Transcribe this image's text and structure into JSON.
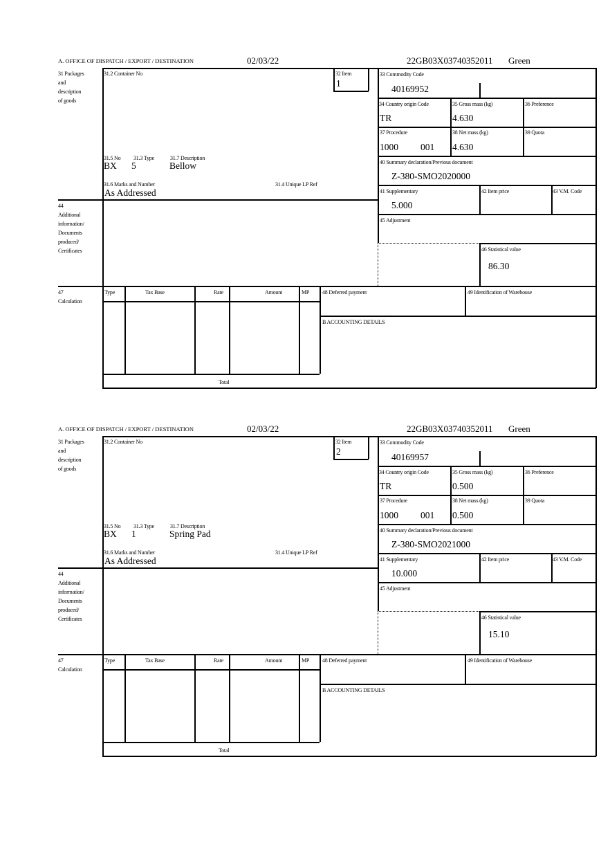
{
  "labels": {
    "office": "A.  OFFICE OF DISPATCH / EXPORT / DESTINATION",
    "box31": [
      "31 Packages",
      "and",
      "description",
      "of goods"
    ],
    "container_no": "31.2 Container No",
    "item": "32 Item",
    "commodity_code": "33 Commodity Code",
    "country_origin": "34 Country origin Code",
    "gross_mass": "35 Gross mass (kg)",
    "preference": "36 Preference",
    "procedure": "37 Procedure",
    "net_mass": "38 Net mass (kg)",
    "quota": "39 Quota",
    "summary_declaration": "40 Summary declaration/Previous document",
    "supplementary": "41 Supplementary",
    "item_price": "42 Item price",
    "vm_code": "43 V.M. Code",
    "adjustment": "45 Adjustment",
    "statistical_value": "46 Statistical value",
    "no": "31.5 No",
    "type": "31.3 Type",
    "description": "31.7 Description",
    "marks": "31.6 Marks and Number",
    "unique_lp_ref": "31.4 Unique LP Ref",
    "box44": [
      "44",
      "Additional",
      "information/",
      "Documents",
      "produced/",
      "Certificates"
    ],
    "box47": [
      "47",
      "Calculation"
    ],
    "calc_headers": [
      "Type",
      "Tax Base",
      "Rate",
      "Amount",
      "MP"
    ],
    "total": "Total",
    "deferred_payment": "48 Deferred payment",
    "warehouse": "49 Identification of Warehouse",
    "accounting": "B ACCOUNTING DETAILS"
  },
  "forms": [
    {
      "date": "02/03/22",
      "reference": "22GB03X03740352011",
      "route": "Green",
      "item": "1",
      "commodity_code": "40169952",
      "country_origin": "TR",
      "gross_mass": "4.630",
      "procedure": "1000",
      "procedure_extra": "001",
      "net_mass": "4.630",
      "summary_declaration": "Z-380-SMO2020000",
      "supplementary": "5.000",
      "statistical_value": "86.30",
      "package_kind": "BX",
      "package_count": "5",
      "description": "Bellow",
      "marks": "As Addressed"
    },
    {
      "date": "02/03/22",
      "reference": "22GB03X03740352011",
      "route": "Green",
      "item": "2",
      "commodity_code": "40169957",
      "country_origin": "TR",
      "gross_mass": "0.500",
      "procedure": "1000",
      "procedure_extra": "001",
      "net_mass": "0.500",
      "summary_declaration": "Z-380-SMO2021000",
      "supplementary": "10.000",
      "statistical_value": "15.10",
      "package_kind": "BX",
      "package_count": "1",
      "description": "Spring Pad",
      "marks": "As Addressed"
    }
  ]
}
